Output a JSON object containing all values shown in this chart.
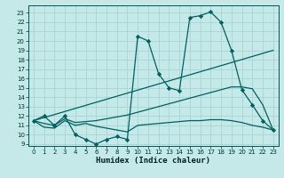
{
  "xlabel": "Humidex (Indice chaleur)",
  "xlim": [
    -0.5,
    23.5
  ],
  "ylim": [
    8.8,
    23.8
  ],
  "yticks": [
    9,
    10,
    11,
    12,
    13,
    14,
    15,
    16,
    17,
    18,
    19,
    20,
    21,
    22,
    23
  ],
  "xticks": [
    0,
    1,
    2,
    3,
    4,
    5,
    6,
    7,
    8,
    9,
    10,
    11,
    12,
    13,
    14,
    15,
    16,
    17,
    18,
    19,
    20,
    21,
    22,
    23
  ],
  "bg_color": "#c5e8e8",
  "grid_color": "#a8d4d4",
  "line_color": "#006060",
  "curve1_x": [
    0,
    1,
    2,
    3,
    4,
    5,
    6,
    7,
    8,
    9,
    10,
    11,
    12,
    13,
    14,
    15,
    16,
    17,
    18,
    19,
    20,
    21,
    22,
    23
  ],
  "curve1_y": [
    11.5,
    12.0,
    11.0,
    12.0,
    10.0,
    9.5,
    9.0,
    9.5,
    9.8,
    9.5,
    20.5,
    20.0,
    16.5,
    15.0,
    14.7,
    22.5,
    22.7,
    23.1,
    22.0,
    19.0,
    14.8,
    13.2,
    11.5,
    10.5
  ],
  "curve2_x": [
    0,
    1,
    2,
    3,
    4,
    5,
    6,
    7,
    8,
    9,
    10,
    11,
    12,
    13,
    14,
    15,
    16,
    17,
    18,
    19,
    20,
    21,
    22,
    23
  ],
  "curve2_y": [
    11.5,
    11.2,
    11.0,
    11.7,
    11.3,
    11.4,
    11.5,
    11.7,
    11.9,
    12.1,
    12.4,
    12.7,
    13.0,
    13.3,
    13.6,
    13.9,
    14.2,
    14.5,
    14.8,
    15.1,
    15.1,
    14.9,
    13.2,
    10.5
  ],
  "curve3_x": [
    0,
    23
  ],
  "curve3_y": [
    11.5,
    19.0
  ],
  "curve4_x": [
    0,
    1,
    2,
    3,
    4,
    5,
    6,
    7,
    8,
    9,
    10,
    11,
    12,
    13,
    14,
    15,
    16,
    17,
    18,
    19,
    20,
    21,
    22,
    23
  ],
  "curve4_y": [
    11.5,
    10.8,
    10.7,
    11.5,
    11.0,
    11.2,
    10.9,
    10.7,
    10.5,
    10.3,
    11.0,
    11.1,
    11.2,
    11.3,
    11.4,
    11.5,
    11.5,
    11.6,
    11.6,
    11.5,
    11.3,
    11.0,
    10.8,
    10.5
  ]
}
